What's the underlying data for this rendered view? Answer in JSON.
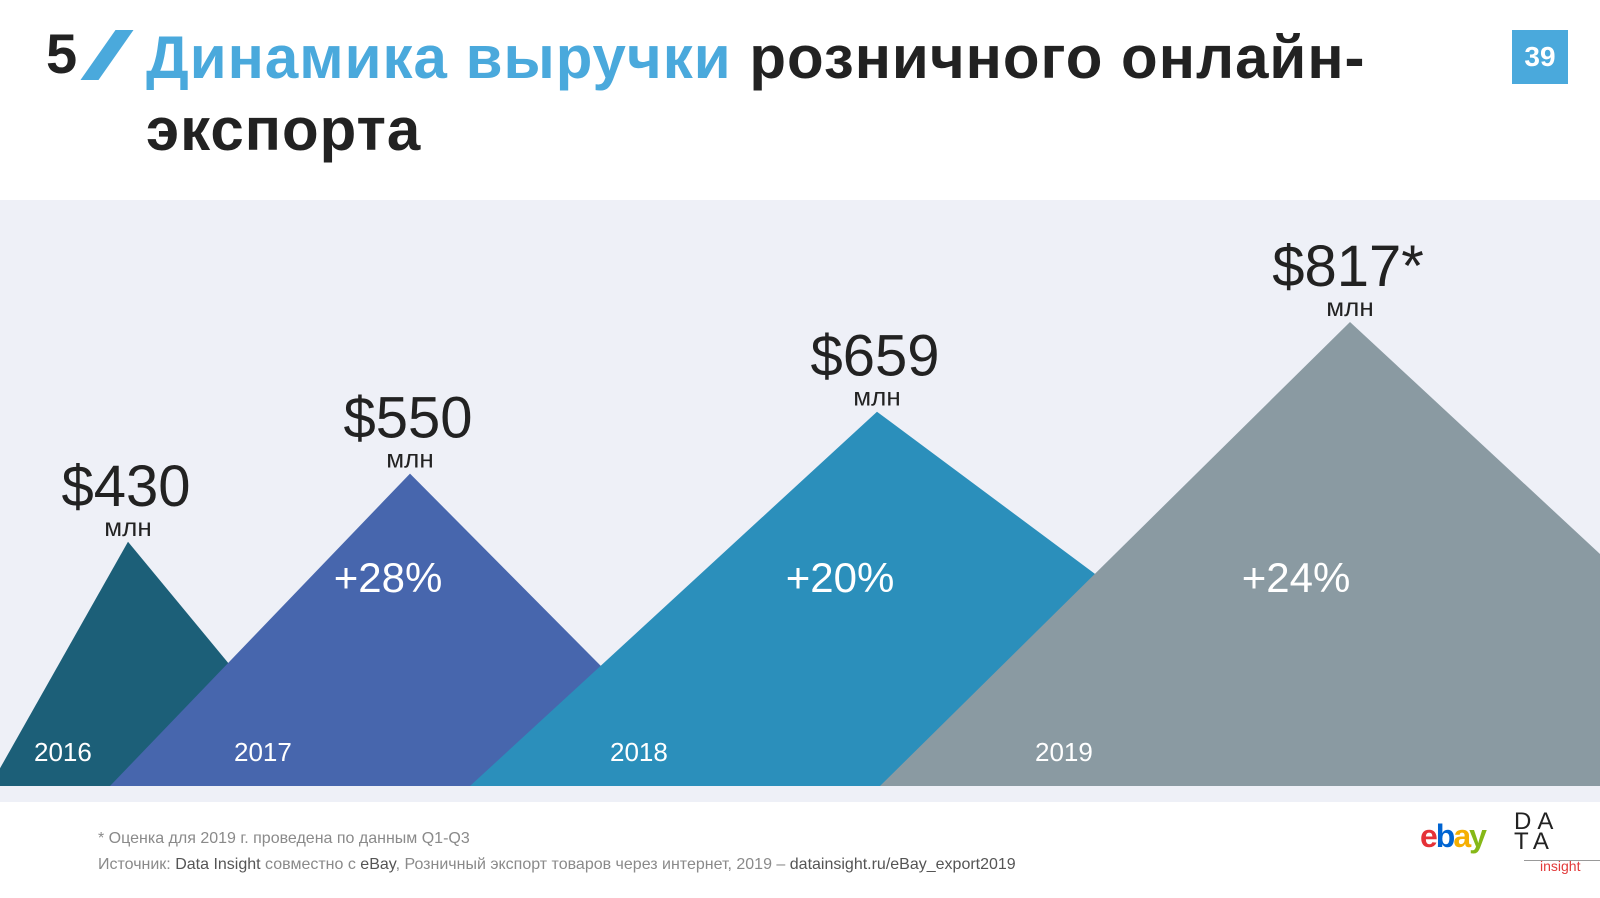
{
  "header": {
    "section_number": "5",
    "title_accent": "Динамика выручки",
    "title_rest": " розничного онлайн-экспорта",
    "page_number": "39"
  },
  "colors": {
    "accent": "#4aa9dc",
    "background_band": "#eef0f7",
    "y2016": "#1c5f78",
    "y2017": "#4766ad",
    "y2018": "#2b8fbb",
    "y2019": "#8a9aa2"
  },
  "chart_data": {
    "type": "area",
    "categories": [
      "2016",
      "2017",
      "2018",
      "2019"
    ],
    "values": [
      430,
      550,
      659,
      817
    ],
    "unit": "млн",
    "value_labels": [
      "$430",
      "$550",
      "$659",
      "$817*"
    ],
    "growth_labels": [
      "",
      "+28%",
      "+20%",
      "+24%"
    ]
  },
  "footer": {
    "note": "* Оценка для 2019 г. проведена по данным Q1-Q3",
    "source_prefix": "Источник: ",
    "source_org": "Data Insight",
    "source_mid": " совместно с ",
    "source_partner": "eBay",
    "source_rest": ", Розничный экспорт товаров через интернет, 2019 – ",
    "source_link": "datainsight.ru/eBay_export2019"
  },
  "logos": {
    "ebay_letters": [
      "e",
      "b",
      "a",
      "y"
    ],
    "ebay_colors": [
      "#e53238",
      "#0064d2",
      "#f5af02",
      "#86b817"
    ],
    "datainsight_line1": "DA",
    "datainsight_line2": "TA",
    "datainsight_sub": "insight"
  }
}
